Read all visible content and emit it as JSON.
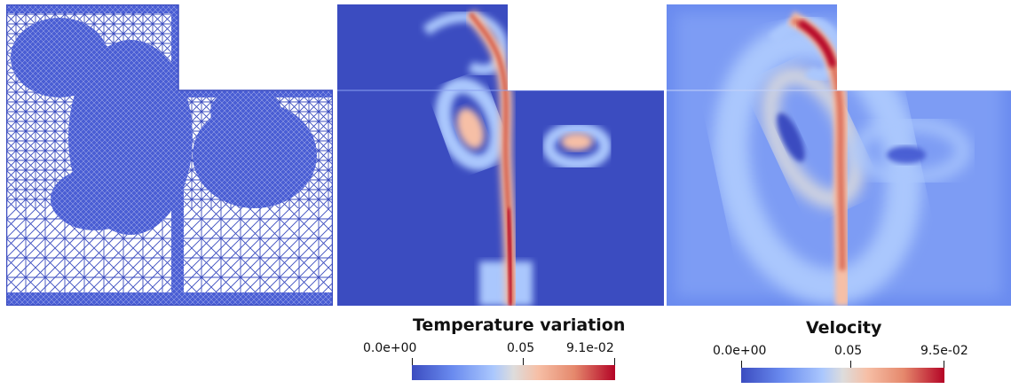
{
  "colorbars": [
    {
      "title": "Temperature variation",
      "min_label": "0.0e+00",
      "mid_label": "0.05",
      "max_label": "9.1e-02"
    },
    {
      "title": "Velocity",
      "min_label": "0.0e+00",
      "mid_label": "0.05",
      "max_label": "9.5e-02"
    }
  ],
  "colors": {
    "mesh_blue": "#3b4cc0",
    "field_low": "#3b4cc0",
    "field_high": "#b40426",
    "background": "#ffffff"
  }
}
